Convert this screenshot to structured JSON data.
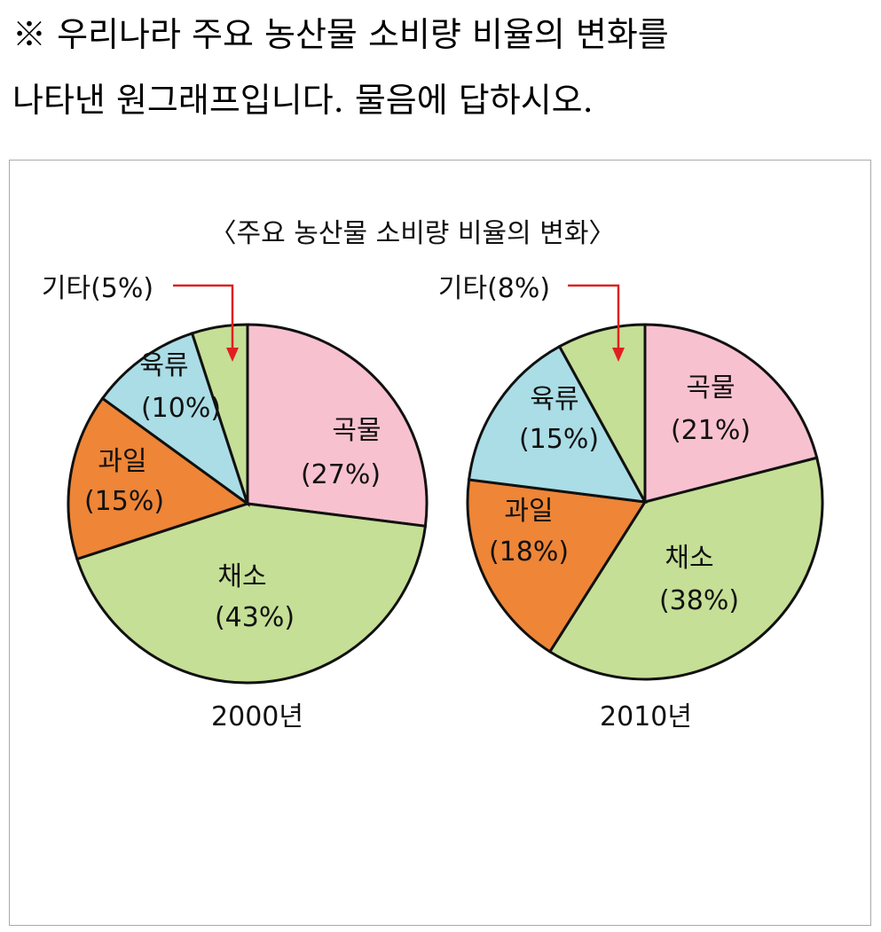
{
  "question": {
    "line1": "※ 우리나라 주요 농산물 소비량 비율의 변화를",
    "line2": "나타낸 원그래프입니다. 물음에 답하시오."
  },
  "chart_data": [
    {
      "type": "pie",
      "title": "〈주요 농산물 소비량 비율의 변화〉",
      "label": "2000년",
      "slices": [
        {
          "name": "곡물",
          "value": 27,
          "pct": "(27%)",
          "color": "#f8c1d0"
        },
        {
          "name": "채소",
          "value": 43,
          "pct": "(43%)",
          "color": "#c5df96"
        },
        {
          "name": "과일",
          "value": 15,
          "pct": "(15%)",
          "color": "#ee8537"
        },
        {
          "name": "육류",
          "value": 10,
          "pct": "(10%)",
          "color": "#aadde6"
        },
        {
          "name": "기타",
          "value": 5,
          "pct": "기타(5%)",
          "color": "#c5df96"
        }
      ]
    },
    {
      "type": "pie",
      "title": "〈주요 농산물 소비량 비율의 변화〉",
      "label": "2010년",
      "slices": [
        {
          "name": "곡물",
          "value": 21,
          "pct": "(21%)",
          "color": "#f8c1d0"
        },
        {
          "name": "채소",
          "value": 38,
          "pct": "(38%)",
          "color": "#c5df96"
        },
        {
          "name": "과일",
          "value": 18,
          "pct": "(18%)",
          "color": "#ee8537"
        },
        {
          "name": "육류",
          "value": 15,
          "pct": "(15%)",
          "color": "#aadde6"
        },
        {
          "name": "기타",
          "value": 8,
          "pct": "기타(8%)",
          "color": "#c5df96"
        }
      ]
    }
  ],
  "arrow_color": "#e02020"
}
